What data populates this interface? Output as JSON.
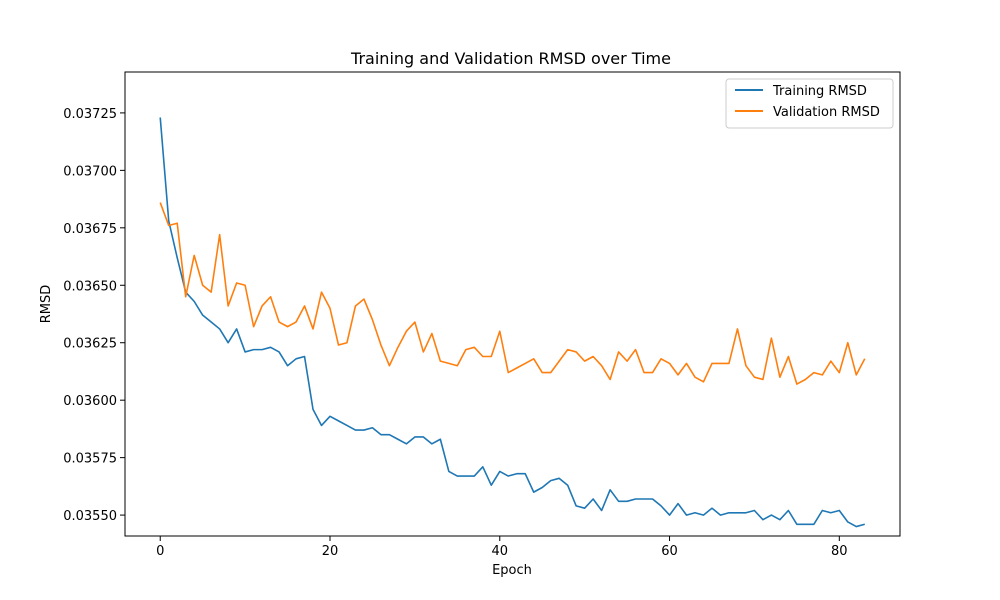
{
  "chart_data": {
    "type": "line",
    "title": "Training and Validation RMSD over Time",
    "xlabel": "Epoch",
    "ylabel": "RMSD",
    "xlim": [
      -4.15,
      87.15
    ],
    "ylim": [
      0.035409,
      0.037428
    ],
    "xticks": [
      0,
      20,
      40,
      60,
      80
    ],
    "xtick_labels": [
      "0",
      "20",
      "40",
      "60",
      "80"
    ],
    "yticks": [
      0.0355,
      0.03575,
      0.036,
      0.03625,
      0.0365,
      0.03675,
      0.037,
      0.03725
    ],
    "ytick_labels": [
      "0.03550",
      "0.03575",
      "0.03600",
      "0.03625",
      "0.03650",
      "0.03675",
      "0.03700",
      "0.03725"
    ],
    "grid": false,
    "legend_position": "upper right",
    "x": [
      0,
      1,
      2,
      3,
      4,
      5,
      6,
      7,
      8,
      9,
      10,
      11,
      12,
      13,
      14,
      15,
      16,
      17,
      18,
      19,
      20,
      21,
      22,
      23,
      24,
      25,
      26,
      27,
      28,
      29,
      30,
      31,
      32,
      33,
      34,
      35,
      36,
      37,
      38,
      39,
      40,
      41,
      42,
      43,
      44,
      45,
      46,
      47,
      48,
      49,
      50,
      51,
      52,
      53,
      54,
      55,
      56,
      57,
      58,
      59,
      60,
      61,
      62,
      63,
      64,
      65,
      66,
      67,
      68,
      69,
      70,
      71,
      72,
      73,
      74,
      75,
      76,
      77,
      78,
      79,
      80,
      81,
      82,
      83
    ],
    "series": [
      {
        "name": "Training RMSD",
        "color": "#1f77b4",
        "values": [
          0.03723,
          0.03678,
          0.03662,
          0.03647,
          0.03643,
          0.03637,
          0.03634,
          0.03631,
          0.03625,
          0.03631,
          0.03621,
          0.03622,
          0.03622,
          0.03623,
          0.03621,
          0.03615,
          0.03618,
          0.03619,
          0.03596,
          0.03589,
          0.03593,
          0.03591,
          0.03589,
          0.03587,
          0.03587,
          0.03588,
          0.03585,
          0.03585,
          0.03583,
          0.03581,
          0.03584,
          0.03584,
          0.03581,
          0.03583,
          0.03569,
          0.03567,
          0.03567,
          0.03567,
          0.03571,
          0.03563,
          0.03569,
          0.03567,
          0.03568,
          0.03568,
          0.0356,
          0.03562,
          0.03565,
          0.03566,
          0.03563,
          0.03554,
          0.03553,
          0.03557,
          0.03552,
          0.03561,
          0.03556,
          0.03556,
          0.03557,
          0.03557,
          0.03557,
          0.03554,
          0.0355,
          0.03555,
          0.0355,
          0.03551,
          0.0355,
          0.03553,
          0.0355,
          0.03551,
          0.03551,
          0.03551,
          0.03552,
          0.03548,
          0.0355,
          0.03548,
          0.03552,
          0.03546,
          0.03546,
          0.03546,
          0.03552,
          0.03551,
          0.03552,
          0.03547,
          0.03545,
          0.03546
        ]
      },
      {
        "name": "Validation RMSD",
        "color": "#ff7f0e",
        "values": [
          0.03686,
          0.03676,
          0.03677,
          0.03645,
          0.03663,
          0.0365,
          0.03647,
          0.03672,
          0.03641,
          0.03651,
          0.0365,
          0.03632,
          0.03641,
          0.03645,
          0.03634,
          0.03632,
          0.03634,
          0.03641,
          0.03631,
          0.03647,
          0.0364,
          0.03624,
          0.03625,
          0.03641,
          0.03644,
          0.03635,
          0.03624,
          0.03615,
          0.03623,
          0.0363,
          0.03634,
          0.03621,
          0.03629,
          0.03617,
          0.03616,
          0.03615,
          0.03622,
          0.03623,
          0.03619,
          0.03619,
          0.0363,
          0.03612,
          0.03614,
          0.03616,
          0.03618,
          0.03612,
          0.03612,
          0.03617,
          0.03622,
          0.03621,
          0.03617,
          0.03619,
          0.03615,
          0.03609,
          0.03621,
          0.03617,
          0.03622,
          0.03612,
          0.03612,
          0.03618,
          0.03616,
          0.03611,
          0.03616,
          0.0361,
          0.03608,
          0.03616,
          0.03616,
          0.03616,
          0.03631,
          0.03615,
          0.0361,
          0.03609,
          0.03627,
          0.0361,
          0.03619,
          0.03607,
          0.03609,
          0.03612,
          0.03611,
          0.03617,
          0.03612,
          0.03625,
          0.03611,
          0.03618
        ]
      }
    ]
  }
}
